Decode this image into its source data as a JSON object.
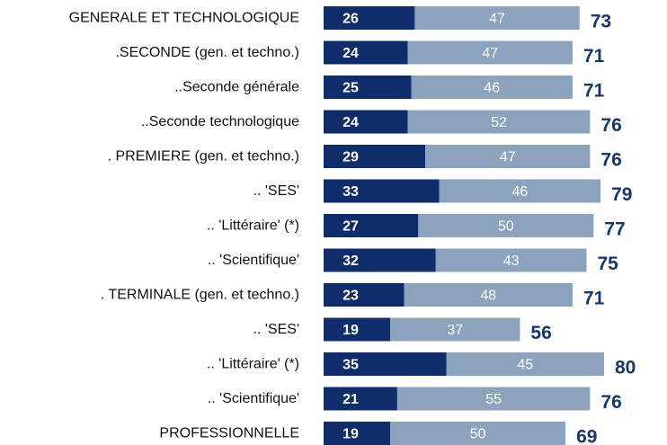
{
  "chart_data": {
    "type": "stacked-bar-horizontal",
    "categories": [
      "GENERALE ET TECHNOLOGIQUE",
      ".SECONDE (gen. et techno.)",
      "..Seconde générale",
      "..Seconde technologique",
      ". PREMIERE (gen. et techno.)",
      ".. 'SES'",
      ".. 'Littéraire' (*)",
      ".. 'Scientifique'",
      ". TERMINALE (gen. et techno.)",
      ".. 'SES'",
      ".. 'Littéraire' (*)",
      ".. 'Scientifique'",
      "PROFESSIONNELLE"
    ],
    "series": [
      {
        "color": "#0f2d6b",
        "label_color": "#ffffff",
        "values": [
          26,
          24,
          25,
          24,
          29,
          33,
          27,
          32,
          23,
          19,
          35,
          21,
          19
        ]
      },
      {
        "color": "#8ba3bc",
        "label_color": "#ffffff",
        "values": [
          47,
          47,
          46,
          52,
          47,
          46,
          50,
          43,
          48,
          37,
          45,
          55,
          50
        ]
      }
    ],
    "totals": [
      73,
      71,
      71,
      76,
      76,
      79,
      77,
      75,
      71,
      56,
      80,
      76,
      69
    ]
  }
}
